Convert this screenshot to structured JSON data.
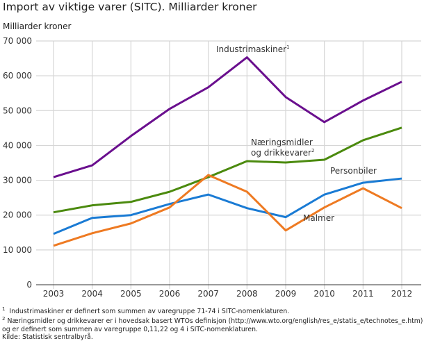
{
  "chart_data": {
    "type": "line",
    "title": "Import av viktige varer (SITC). Milliarder kroner",
    "ylabel": "Milliarder kroner",
    "xlabel": "",
    "x": [
      2003,
      2004,
      2005,
      2006,
      2007,
      2008,
      2009,
      2010,
      2011,
      2012
    ],
    "ylim": [
      0,
      70000
    ],
    "yticks": [
      "0",
      "10 000",
      "20 000",
      "30 000",
      "40 000",
      "50 000",
      "60 000",
      "70 000"
    ],
    "grid": true,
    "series": [
      {
        "name": "Industrimaskiner",
        "sup": "1",
        "color": "#6a0f8e",
        "values": [
          30900,
          34300,
          42700,
          50500,
          56700,
          65300,
          53900,
          46700,
          52900,
          58300
        ]
      },
      {
        "name": "Næringsmidler",
        "name2": "og drikkevarer",
        "sup": "2",
        "color": "#4b8a0e",
        "values": [
          20800,
          22800,
          23800,
          26700,
          30900,
          35500,
          35100,
          35900,
          41500,
          45100
        ]
      },
      {
        "name": "Personbiler",
        "color": "#1a7bd4",
        "values": [
          14600,
          19200,
          20000,
          23200,
          25900,
          22000,
          19400,
          25900,
          29300,
          30500
        ]
      },
      {
        "name": "Malmer",
        "color": "#ee7a22",
        "values": [
          11200,
          14800,
          17600,
          22200,
          31500,
          26700,
          15600,
          22200,
          27700,
          22000
        ]
      }
    ]
  },
  "notes": [
    {
      "sup": "1",
      "text": "Industrimaskiner er definert som summen av varegruppe 71-74 i SITC-nomenklaturen."
    },
    {
      "sup": "2",
      "text": "Næringsmidler og drikkevarer  er i hovedsak basert WTOs definisjon (http://www.wto.org/english/res_e/statis_e/technotes_e.htm)"
    },
    {
      "sup": "",
      "text": "og er definert som summen av varegruppe 0,11,22 og 4 i SITC-nomenklaturen."
    },
    {
      "sup": "",
      "text": "Kilde: Statistisk sentralbyrå."
    }
  ]
}
